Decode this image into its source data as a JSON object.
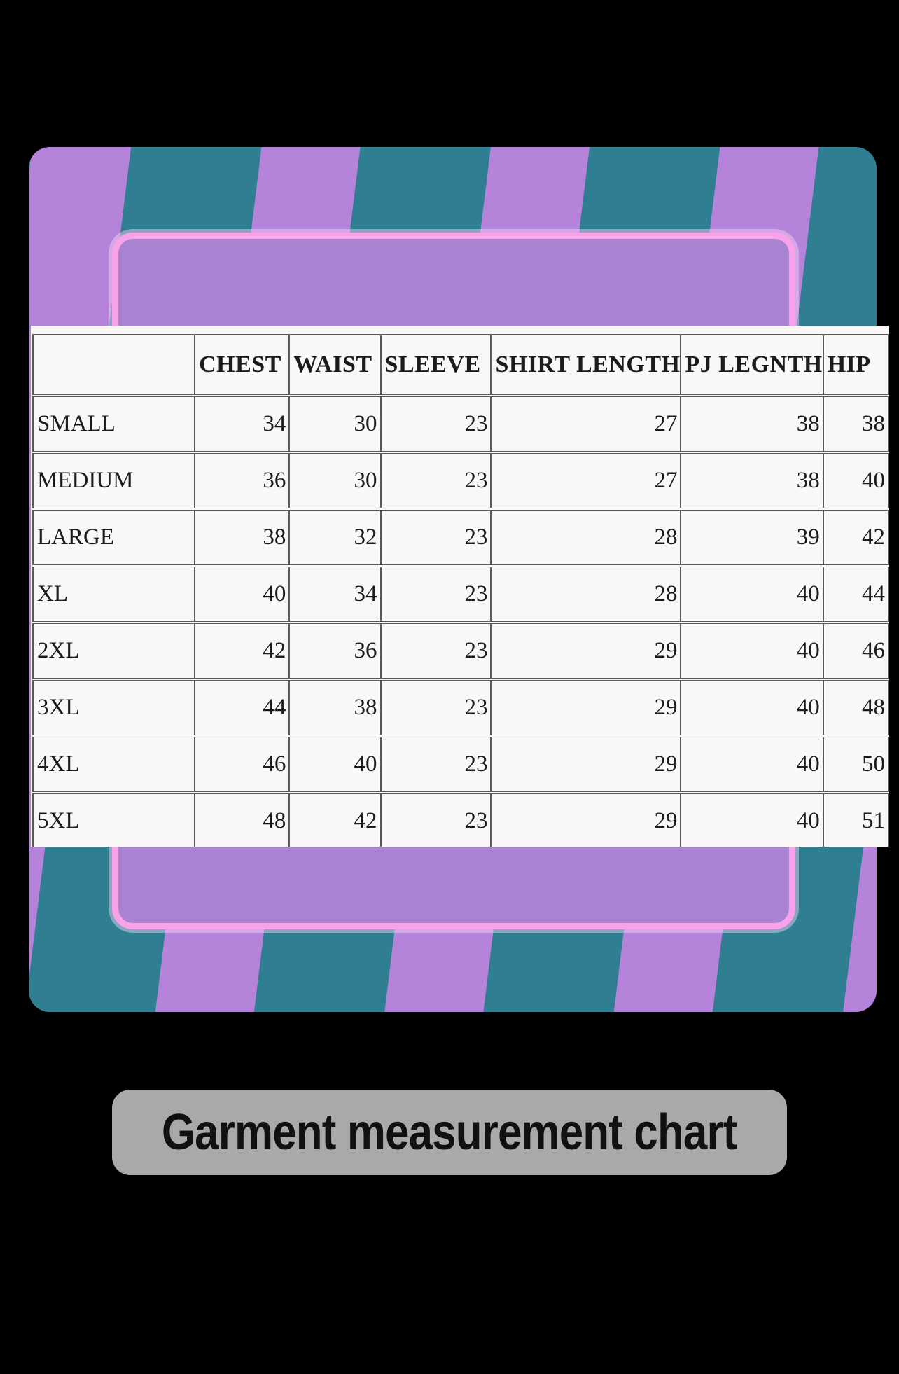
{
  "caption": {
    "label": "Garment measurement chart"
  },
  "chart_data": {
    "type": "table",
    "title": "Garment measurement chart",
    "columns": [
      "",
      "CHEST",
      "WAIST",
      "SLEEVE",
      "SHIRT LENGTH",
      "PJ LEGNTH",
      "HIP"
    ],
    "rows": [
      [
        "SMALL",
        34,
        30,
        23,
        27,
        38,
        38
      ],
      [
        "MEDIUM",
        36,
        30,
        23,
        27,
        38,
        40
      ],
      [
        "LARGE",
        38,
        32,
        23,
        28,
        39,
        42
      ],
      [
        "XL",
        40,
        34,
        23,
        28,
        40,
        44
      ],
      [
        "2XL",
        42,
        36,
        23,
        29,
        40,
        46
      ],
      [
        "3XL",
        44,
        38,
        23,
        29,
        40,
        48
      ],
      [
        "4XL",
        46,
        40,
        23,
        29,
        40,
        50
      ],
      [
        "5XL",
        48,
        42,
        23,
        29,
        40,
        51
      ]
    ]
  },
  "colors": {
    "background": "#000000",
    "teal": "#2f7e92",
    "stripe_purple": "#b583d9",
    "panel_purple": "#a982d2",
    "panel_border_pink": "#f8a2ea",
    "table_bg": "#f9f8f6",
    "table_line": "#5a5a5a",
    "table_text": "#1c1c1c",
    "caption_bg": "#a9a9a9",
    "caption_text": "#111111"
  }
}
